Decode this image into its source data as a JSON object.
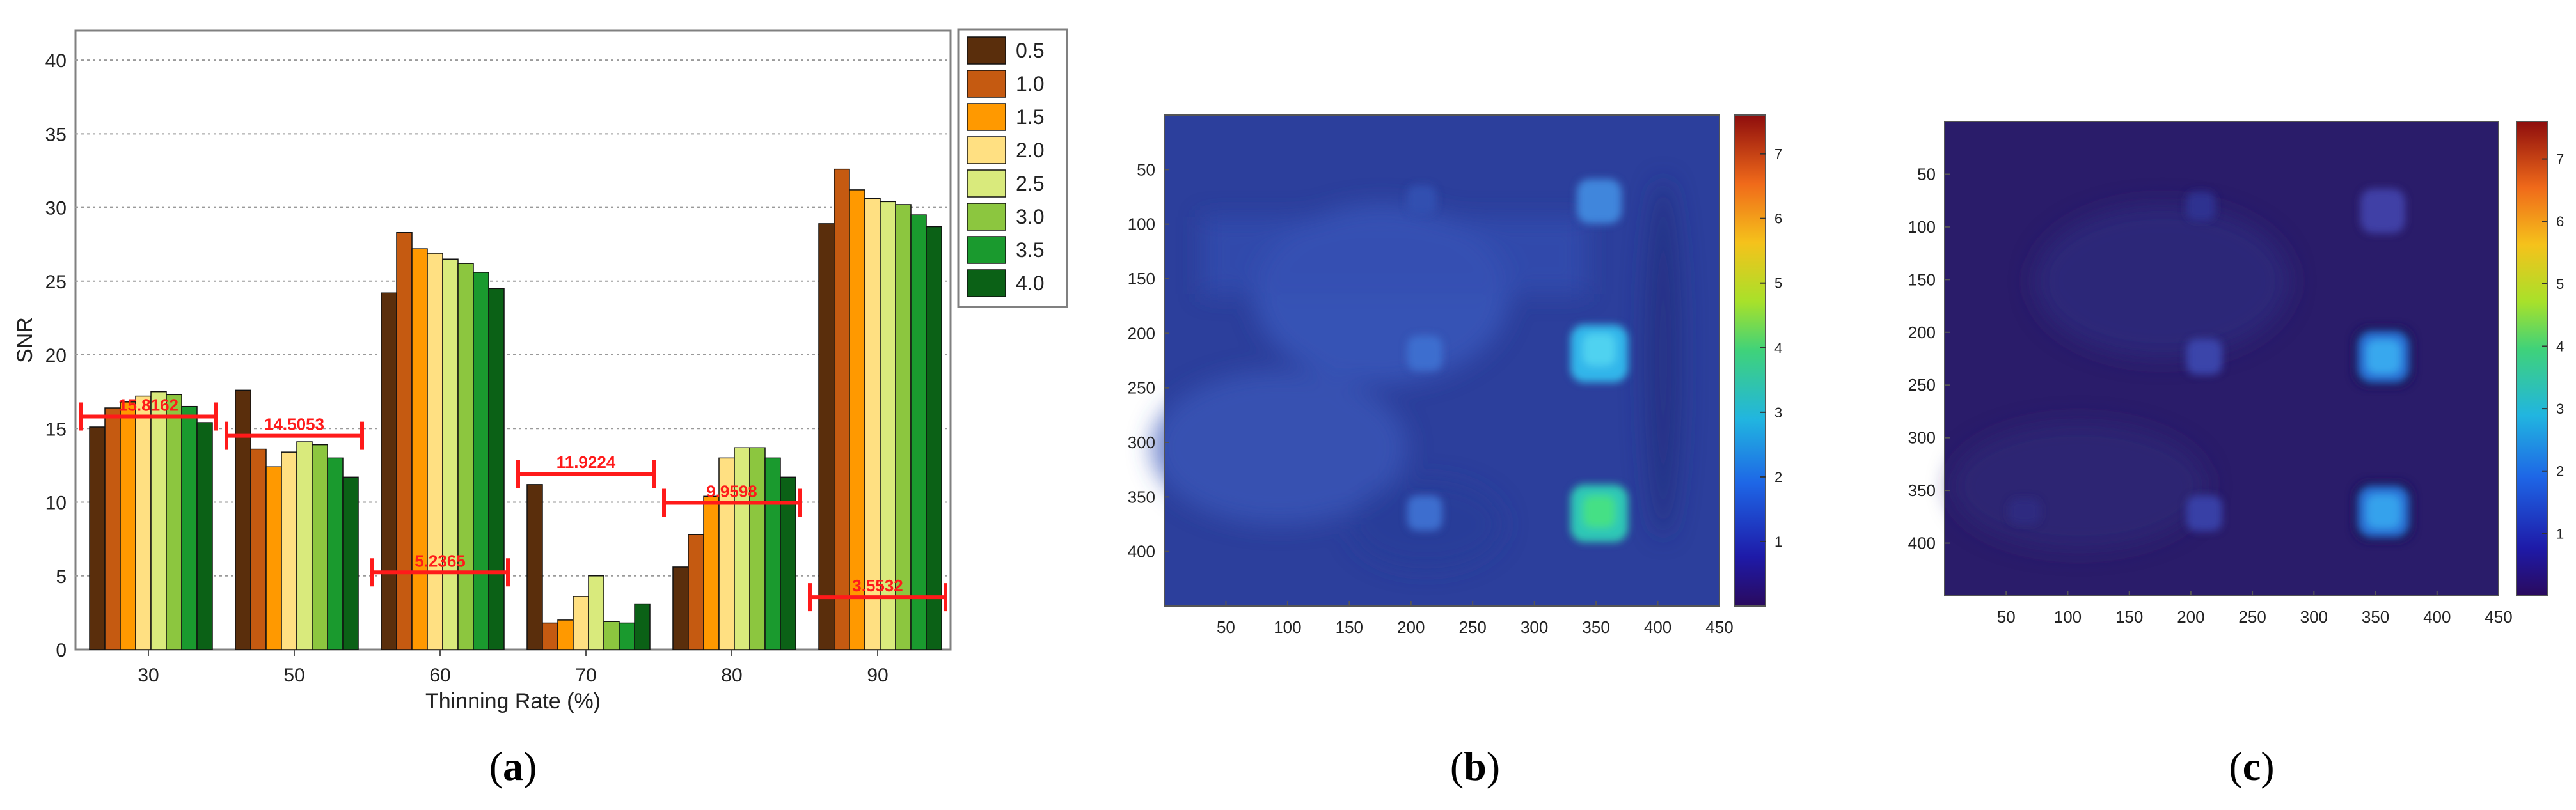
{
  "panel_labels": [
    "a",
    "b",
    "c"
  ],
  "chart_data": [
    {
      "type": "bar",
      "xlabel": "Thinning Rate (%)",
      "ylabel": "SNR",
      "ylim": [
        0,
        42
      ],
      "yticks": [
        0,
        5,
        10,
        15,
        20,
        25,
        30,
        35,
        40
      ],
      "grid": "horizontal dotted",
      "legend_position": "right",
      "categories": [
        "30",
        "50",
        "60",
        "70",
        "80",
        "90"
      ],
      "series": [
        {
          "name": "0.5",
          "color": "#5a2e0c",
          "values": [
            15.1,
            17.6,
            24.2,
            11.2,
            5.6,
            28.9
          ]
        },
        {
          "name": "1.0",
          "color": "#c55a11",
          "values": [
            16.4,
            13.6,
            28.3,
            1.8,
            7.8,
            32.6
          ]
        },
        {
          "name": "1.5",
          "color": "#ff9900",
          "values": [
            16.8,
            12.4,
            27.2,
            2.0,
            10.4,
            31.2
          ]
        },
        {
          "name": "2.0",
          "color": "#ffe082",
          "values": [
            17.2,
            13.4,
            26.9,
            3.6,
            13.0,
            30.6
          ]
        },
        {
          "name": "2.5",
          "color": "#d9ea7c",
          "values": [
            17.5,
            14.1,
            26.5,
            5.0,
            13.7,
            30.4
          ]
        },
        {
          "name": "3.0",
          "color": "#8cc63f",
          "values": [
            17.3,
            13.9,
            26.2,
            1.9,
            13.7,
            30.2
          ]
        },
        {
          "name": "3.5",
          "color": "#1a9a2e",
          "values": [
            16.5,
            13.0,
            25.6,
            1.8,
            13.0,
            29.5
          ]
        },
        {
          "name": "4.0",
          "color": "#0b6116",
          "values": [
            15.4,
            11.7,
            24.5,
            3.1,
            11.7,
            28.7
          ]
        }
      ],
      "annotations": [
        {
          "category": "30",
          "value": 15.8162,
          "label": "15.8162"
        },
        {
          "category": "50",
          "value": 14.5053,
          "label": "14.5053"
        },
        {
          "category": "60",
          "value": 5.2365,
          "label": "5.2365"
        },
        {
          "category": "70",
          "value": 11.9224,
          "label": "11.9224"
        },
        {
          "category": "80",
          "value": 9.9598,
          "label": "9.9598"
        },
        {
          "category": "90",
          "value": 3.5532,
          "label": "3.5532"
        }
      ]
    },
    {
      "type": "heatmap",
      "xticks": [
        50,
        100,
        150,
        200,
        250,
        300,
        350,
        400,
        450
      ],
      "yticks": [
        50,
        100,
        150,
        200,
        250,
        300,
        350,
        400
      ],
      "xlim": [
        0,
        450
      ],
      "ylim": [
        0,
        450
      ],
      "colorbar_ticks": [
        1,
        2,
        3,
        4,
        5,
        6,
        7
      ],
      "colorbar_range": [
        0,
        7.6
      ],
      "colormap": "jet"
    },
    {
      "type": "heatmap",
      "xticks": [
        50,
        100,
        150,
        200,
        250,
        300,
        350,
        400,
        450
      ],
      "yticks": [
        50,
        100,
        150,
        200,
        250,
        300,
        350,
        400
      ],
      "xlim": [
        0,
        450
      ],
      "ylim": [
        0,
        450
      ],
      "colorbar_ticks": [
        1,
        2,
        3,
        4,
        5,
        6,
        7
      ],
      "colorbar_range": [
        0,
        7.6
      ],
      "colormap": "jet"
    }
  ]
}
